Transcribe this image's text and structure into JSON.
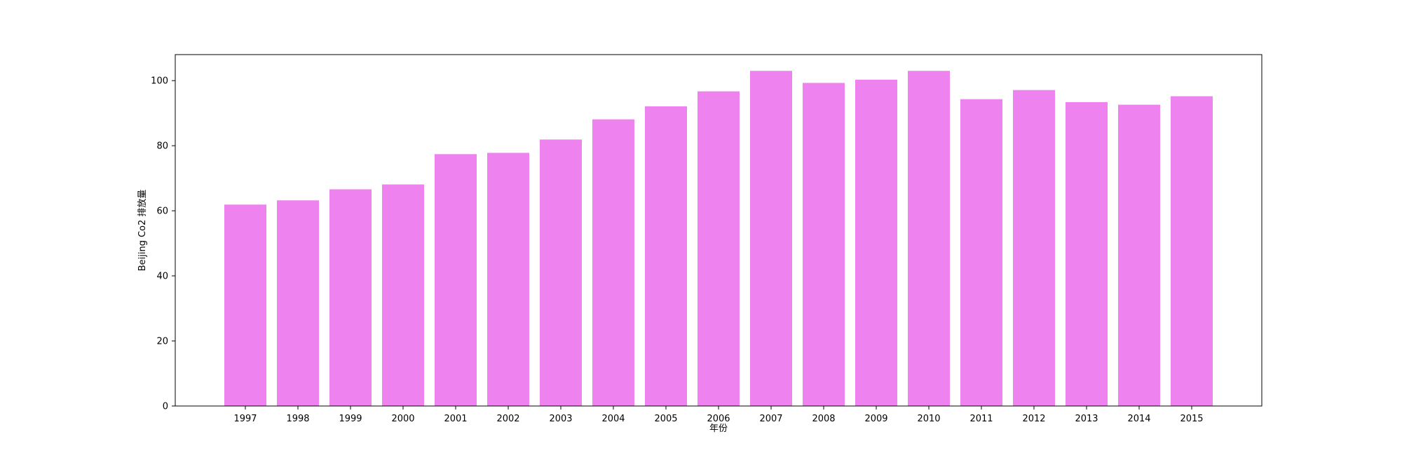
{
  "chart_data": {
    "type": "bar",
    "title": "",
    "xlabel": "年份",
    "ylabel": "Beijing Co2 排放量",
    "categories": [
      "1997",
      "1998",
      "1999",
      "2000",
      "2001",
      "2002",
      "2003",
      "2004",
      "2005",
      "2006",
      "2007",
      "2008",
      "2009",
      "2010",
      "2011",
      "2012",
      "2013",
      "2014",
      "2015"
    ],
    "values": [
      61.9,
      63.2,
      66.6,
      68.1,
      77.4,
      77.8,
      81.9,
      88.1,
      92.1,
      96.7,
      103.0,
      99.3,
      100.3,
      103.0,
      94.3,
      97.1,
      93.4,
      92.6,
      95.2
    ],
    "ylim": [
      0,
      108
    ],
    "yticks": [
      0,
      20,
      40,
      60,
      80,
      100
    ],
    "bar_color": "#ee82ee",
    "grid": false,
    "legend": "none"
  }
}
